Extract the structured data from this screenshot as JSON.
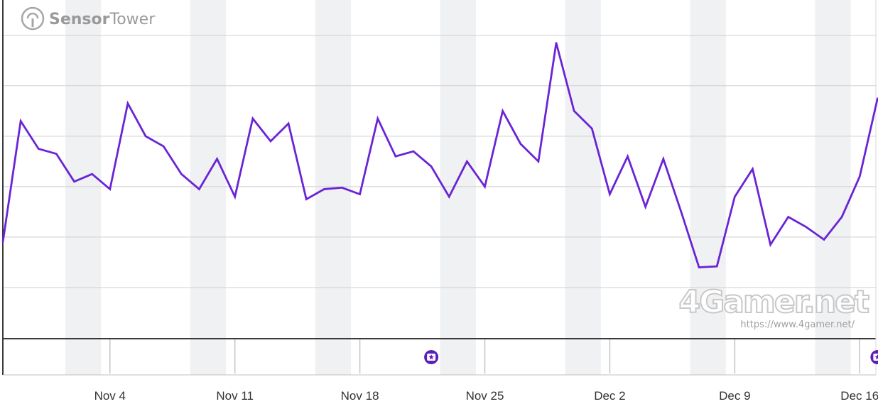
{
  "brand": {
    "name_bold": "Sensor",
    "name_regular": "Tower",
    "icon": "sensortower-icon"
  },
  "watermark": {
    "logo": "4Gamer.net",
    "url": "https://www.4gamer.net/"
  },
  "colors": {
    "line": "#6a24d6",
    "band": "#f0f1f3",
    "grid": "#cfcfcf",
    "axis": "#3a3a3a",
    "marker": "#5b1fb8"
  },
  "chart_data": {
    "type": "line",
    "title": "",
    "xlabel": "",
    "ylabel": "",
    "grid": true,
    "y_axis_labels_shown": false,
    "x": [
      "Oct 29",
      "Oct 30",
      "Oct 31",
      "Nov 1",
      "Nov 2",
      "Nov 3",
      "Nov 4",
      "Nov 5",
      "Nov 6",
      "Nov 7",
      "Nov 8",
      "Nov 9",
      "Nov 10",
      "Nov 11",
      "Nov 12",
      "Nov 13",
      "Nov 14",
      "Nov 15",
      "Nov 16",
      "Nov 17",
      "Nov 18",
      "Nov 19",
      "Nov 20",
      "Nov 21",
      "Nov 22",
      "Nov 23",
      "Nov 24",
      "Nov 25",
      "Nov 26",
      "Nov 27",
      "Nov 28",
      "Nov 29",
      "Nov 30",
      "Dec 1",
      "Dec 2",
      "Dec 3",
      "Dec 4",
      "Dec 5",
      "Dec 6",
      "Dec 7",
      "Dec 8",
      "Dec 9",
      "Dec 10",
      "Dec 11",
      "Dec 12",
      "Dec 13",
      "Dec 14",
      "Dec 15",
      "Dec 16",
      "Dec 17"
    ],
    "series": [
      {
        "values": [
          1.9,
          4.3,
          3.75,
          3.65,
          3.1,
          3.25,
          2.95,
          4.65,
          4.0,
          3.8,
          3.25,
          2.95,
          3.55,
          2.8,
          4.35,
          3.9,
          4.25,
          2.75,
          2.95,
          2.98,
          2.85,
          4.35,
          3.6,
          3.7,
          3.4,
          2.8,
          3.5,
          3.0,
          4.5,
          3.85,
          3.5,
          5.85,
          4.5,
          4.15,
          2.85,
          3.6,
          2.6,
          3.55,
          2.5,
          1.4,
          1.42,
          2.8,
          3.35,
          1.85,
          2.4,
          2.2,
          1.95,
          2.4,
          3.2,
          4.75
        ]
      }
    ],
    "ylim": [
      0,
      6.7
    ],
    "y_gridlines": [
      1,
      2,
      3,
      4,
      5,
      6
    ],
    "x_ticks": [
      "Nov 4",
      "Nov 11",
      "Nov 18",
      "Nov 25",
      "Dec 2",
      "Dec 9",
      "Dec 16"
    ],
    "weekend_bands": [
      [
        "Nov 2",
        "Nov 3"
      ],
      [
        "Nov 9",
        "Nov 10"
      ],
      [
        "Nov 16",
        "Nov 17"
      ],
      [
        "Nov 23",
        "Nov 24"
      ],
      [
        "Nov 30",
        "Dec 1"
      ],
      [
        "Dec 7",
        "Dec 8"
      ],
      [
        "Dec 14",
        "Dec 15"
      ]
    ],
    "event_markers": [
      "Nov 22",
      "Dec 17"
    ],
    "event_marker_icon": "star-badge-icon"
  }
}
